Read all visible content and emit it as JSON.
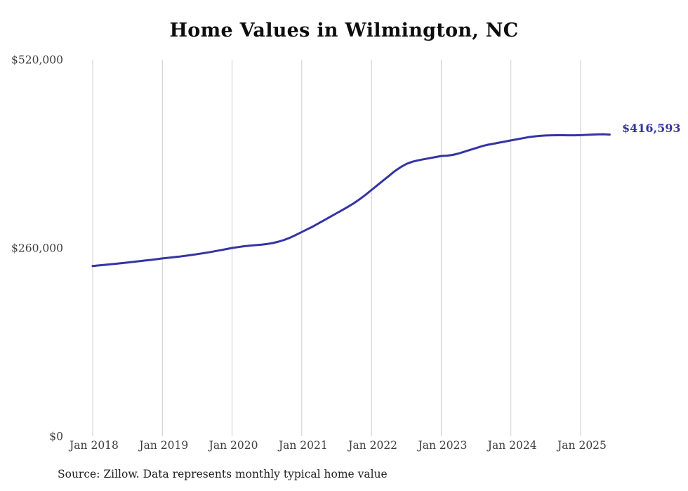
{
  "title": "Home Values in Wilmington, NC",
  "end_label": "$416,593",
  "source_note": "Source: Zillow. Data represents monthly typical home value",
  "colors": {
    "line": "#3434a4",
    "grid": "#cccccc",
    "axis": "#3d3d3d",
    "title": "#0d0d0d"
  },
  "chart_data": {
    "type": "line",
    "title": "Home Values in Wilmington, NC",
    "xlabel": "",
    "ylabel": "",
    "ylim": [
      0,
      520000
    ],
    "grid": "vertical",
    "legend": "none",
    "y_ticks": [
      {
        "value": 0,
        "label": "$0"
      },
      {
        "value": 260000,
        "label": "$260,000"
      },
      {
        "value": 520000,
        "label": "$520,000"
      }
    ],
    "x_ticks": [
      "Jan 2018",
      "Jan 2019",
      "Jan 2020",
      "Jan 2021",
      "Jan 2022",
      "Jan 2023",
      "Jan 2024",
      "Jan 2025"
    ],
    "frequency": "monthly",
    "final_value": 416593,
    "series": [
      {
        "name": "Typical home value",
        "x": [
          "2018-01",
          "2018-02",
          "2018-03",
          "2018-04",
          "2018-05",
          "2018-06",
          "2018-07",
          "2018-08",
          "2018-09",
          "2018-10",
          "2018-11",
          "2018-12",
          "2019-01",
          "2019-02",
          "2019-03",
          "2019-04",
          "2019-05",
          "2019-06",
          "2019-07",
          "2019-08",
          "2019-09",
          "2019-10",
          "2019-11",
          "2019-12",
          "2020-01",
          "2020-02",
          "2020-03",
          "2020-04",
          "2020-05",
          "2020-06",
          "2020-07",
          "2020-08",
          "2020-09",
          "2020-10",
          "2020-11",
          "2020-12",
          "2021-01",
          "2021-02",
          "2021-03",
          "2021-04",
          "2021-05",
          "2021-06",
          "2021-07",
          "2021-08",
          "2021-09",
          "2021-10",
          "2021-11",
          "2021-12",
          "2022-01",
          "2022-02",
          "2022-03",
          "2022-04",
          "2022-05",
          "2022-06",
          "2022-07",
          "2022-08",
          "2022-09",
          "2022-10",
          "2022-11",
          "2022-12",
          "2023-01",
          "2023-02",
          "2023-03",
          "2023-04",
          "2023-05",
          "2023-06",
          "2023-07",
          "2023-08",
          "2023-09",
          "2023-10",
          "2023-11",
          "2023-12",
          "2024-01",
          "2024-02",
          "2024-03",
          "2024-04",
          "2024-05",
          "2024-06",
          "2024-07",
          "2024-08",
          "2024-09",
          "2024-10",
          "2024-11",
          "2024-12",
          "2025-01",
          "2025-02",
          "2025-03",
          "2025-04",
          "2025-05",
          "2025-06"
        ],
        "values": [
          235000,
          235800,
          236600,
          237400,
          238200,
          239000,
          239900,
          240800,
          241700,
          242600,
          243500,
          244500,
          245500,
          246400,
          247300,
          248200,
          249200,
          250300,
          251500,
          252700,
          254000,
          255400,
          256900,
          258400,
          260000,
          261200,
          262300,
          263200,
          263900,
          264500,
          265400,
          266800,
          268700,
          271200,
          274300,
          278000,
          282000,
          286000,
          290000,
          294500,
          299000,
          303500,
          308000,
          312500,
          317000,
          322000,
          327500,
          333500,
          340000,
          346500,
          353000,
          359500,
          366000,
          371500,
          376000,
          379000,
          381000,
          382500,
          384000,
          385500,
          387000,
          387500,
          388500,
          390500,
          393000,
          395500,
          398000,
          400500,
          402500,
          404000,
          405500,
          407000,
          408500,
          410000,
          411500,
          413000,
          414000,
          414800,
          415300,
          415600,
          415700,
          415700,
          415600,
          415600,
          415800,
          416200,
          416600,
          417000,
          417100,
          416593
        ]
      }
    ]
  }
}
